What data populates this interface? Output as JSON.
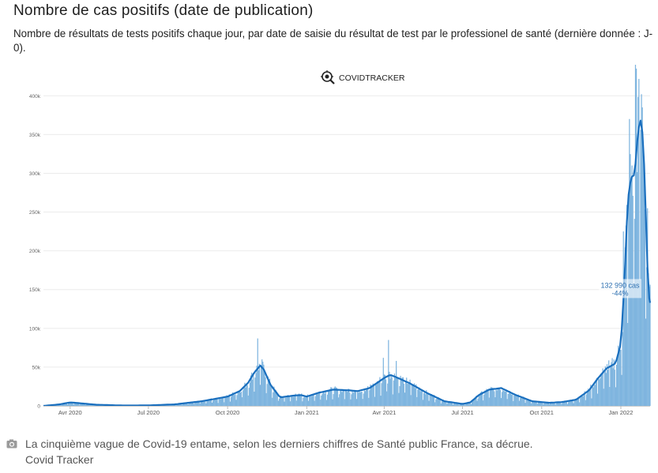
{
  "header": {
    "title": "Nombre de cas positifs (date de publication)",
    "subtitle": "Nombre de résultats de tests positifs chaque jour, par date de saisie du résultat de test par le professionel de santé (dernière donnée : J-0)."
  },
  "watermark": {
    "label": "COVIDTRACKER",
    "icon": "virus-magnifier-icon"
  },
  "caption": {
    "text": "La cinquième vague de Covid-19 entame, selon les derniers chiffres de Santé public France, sa décrue.",
    "credit": "Covid Tracker",
    "icon": "camera-icon"
  },
  "chart_data": {
    "type": "bar",
    "overlay": "line (rolling average)",
    "x_start": "2020-03-01",
    "x_end": "2022-02-04",
    "x_ticks": [
      "Avr 2020",
      "Jul 2020",
      "Oct 2020",
      "Jan 2021",
      "Avr 2021",
      "Jul 2021",
      "Oct 2021",
      "Jan 2022"
    ],
    "y_ticks": [
      "0",
      "50k",
      "100k",
      "150k",
      "200k",
      "250k",
      "300k",
      "350k",
      "400k"
    ],
    "ylim": [
      0,
      440000
    ],
    "grid": true,
    "colors": {
      "bars": "#7fb5df",
      "line": "#1a6fbe",
      "grid": "#ebebeb"
    },
    "average_curve": [
      [
        "2020-03-01",
        0
      ],
      [
        "2020-03-20",
        2000
      ],
      [
        "2020-04-01",
        4500
      ],
      [
        "2020-04-12",
        3500
      ],
      [
        "2020-05-01",
        1500
      ],
      [
        "2020-06-01",
        500
      ],
      [
        "2020-07-01",
        600
      ],
      [
        "2020-08-01",
        2000
      ],
      [
        "2020-09-01",
        6000
      ],
      [
        "2020-10-01",
        12000
      ],
      [
        "2020-10-15",
        19000
      ],
      [
        "2020-10-25",
        30000
      ],
      [
        "2020-11-01",
        43000
      ],
      [
        "2020-11-08",
        52000
      ],
      [
        "2020-11-12",
        47000
      ],
      [
        "2020-11-20",
        27000
      ],
      [
        "2020-12-01",
        11000
      ],
      [
        "2020-12-15",
        13000
      ],
      [
        "2020-12-25",
        14000
      ],
      [
        "2021-01-01",
        12000
      ],
      [
        "2021-01-15",
        17000
      ],
      [
        "2021-02-01",
        21000
      ],
      [
        "2021-02-20",
        20000
      ],
      [
        "2021-03-01",
        19000
      ],
      [
        "2021-03-15",
        23000
      ],
      [
        "2021-04-01",
        36000
      ],
      [
        "2021-04-08",
        40000
      ],
      [
        "2021-04-15",
        37000
      ],
      [
        "2021-05-01",
        29000
      ],
      [
        "2021-05-20",
        17000
      ],
      [
        "2021-06-10",
        6000
      ],
      [
        "2021-07-01",
        2500
      ],
      [
        "2021-07-10",
        4500
      ],
      [
        "2021-07-20",
        14000
      ],
      [
        "2021-08-01",
        21000
      ],
      [
        "2021-08-15",
        23000
      ],
      [
        "2021-09-01",
        14000
      ],
      [
        "2021-09-20",
        6000
      ],
      [
        "2021-10-10",
        4000
      ],
      [
        "2021-10-25",
        5000
      ],
      [
        "2021-11-10",
        8000
      ],
      [
        "2021-11-25",
        20000
      ],
      [
        "2021-12-05",
        35000
      ],
      [
        "2021-12-15",
        48000
      ],
      [
        "2021-12-26",
        55000
      ],
      [
        "2022-01-01",
        80000
      ],
      [
        "2022-01-05",
        155000
      ],
      [
        "2022-01-09",
        265000
      ],
      [
        "2022-01-13",
        295000
      ],
      [
        "2022-01-17",
        298000
      ],
      [
        "2022-01-21",
        355000
      ],
      [
        "2022-01-24",
        368000
      ],
      [
        "2022-01-27",
        345000
      ],
      [
        "2022-01-30",
        245000
      ],
      [
        "2022-02-02",
        145000
      ],
      [
        "2022-02-04",
        133000
      ]
    ],
    "spikes": [
      [
        "2020-11-05",
        87000
      ],
      [
        "2020-11-10",
        60000
      ],
      [
        "2021-04-06",
        85000
      ],
      [
        "2021-03-31",
        62000
      ],
      [
        "2021-04-15",
        58000
      ],
      [
        "2022-01-04",
        225000
      ],
      [
        "2022-01-11",
        370000
      ],
      [
        "2022-01-18",
        440000
      ],
      [
        "2022-01-19",
        435000
      ],
      [
        "2022-01-25",
        402000
      ],
      [
        "2022-01-26",
        385000
      ],
      [
        "2022-02-01",
        255000
      ]
    ],
    "annotation": {
      "value": "132 990 cas",
      "change": "-44%",
      "date": "2022-02-04"
    }
  }
}
